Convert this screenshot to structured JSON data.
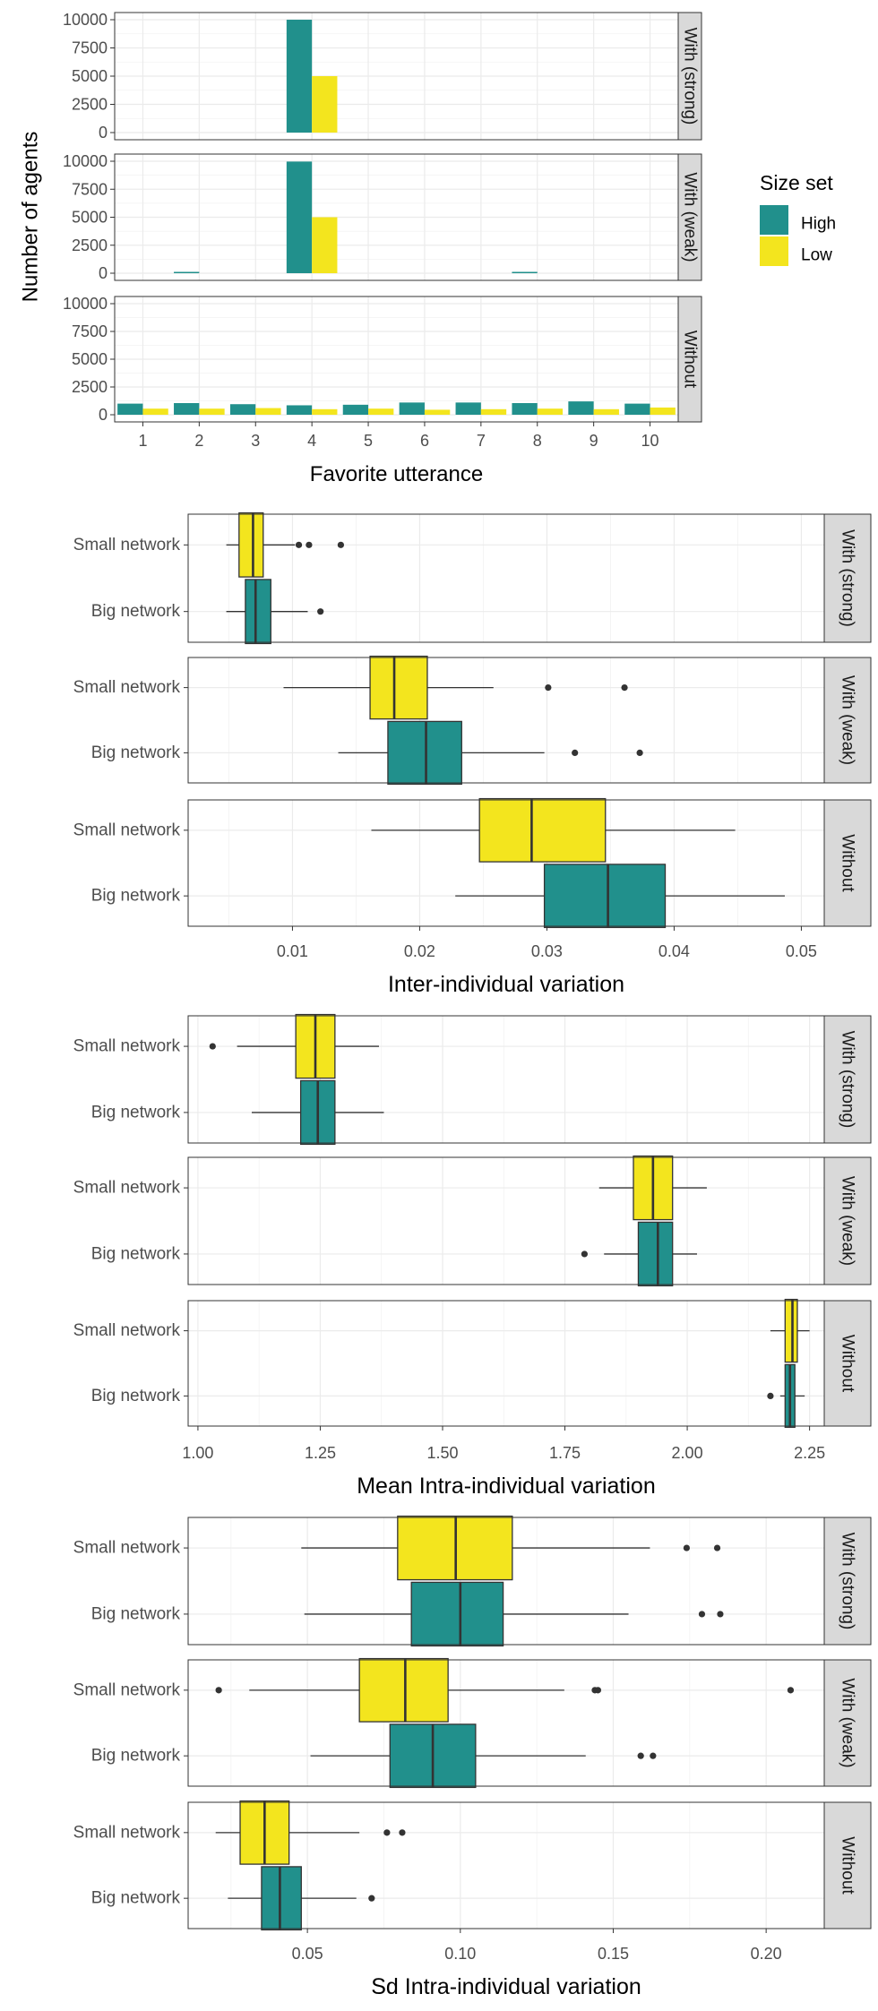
{
  "colors": {
    "high": "#21908C",
    "low": "#F3E51E",
    "strip_bg": "#D9D9D9",
    "grid": "#EBEBEB",
    "frame": "#333333"
  },
  "legend": {
    "title": "Size set",
    "items": [
      {
        "key": "high",
        "label": "High"
      },
      {
        "key": "low",
        "label": "Low"
      }
    ]
  },
  "chart_data": [
    {
      "type": "bar",
      "xlabel": "Favorite utterance",
      "ylabel": "Number of agents",
      "categories": [
        "1",
        "2",
        "3",
        "4",
        "5",
        "6",
        "7",
        "8",
        "9",
        "10"
      ],
      "ylim": [
        0,
        10000
      ],
      "yticks": [
        "10000",
        "7500",
        "5000",
        "2500",
        "0"
      ],
      "panels": [
        {
          "strip": "With (strong)",
          "series": [
            {
              "name": "High",
              "values": [
                0,
                0,
                0,
                10000,
                0,
                0,
                0,
                0,
                0,
                0
              ]
            },
            {
              "name": "Low",
              "values": [
                0,
                0,
                0,
                5000,
                0,
                0,
                0,
                0,
                0,
                0
              ]
            }
          ]
        },
        {
          "strip": "With (weak)",
          "series": [
            {
              "name": "High",
              "values": [
                0,
                30,
                0,
                9970,
                0,
                0,
                0,
                30,
                0,
                0
              ]
            },
            {
              "name": "Low",
              "values": [
                0,
                0,
                0,
                5000,
                0,
                0,
                0,
                0,
                0,
                0
              ]
            }
          ]
        },
        {
          "strip": "Without",
          "series": [
            {
              "name": "High",
              "values": [
                1000,
                1050,
                950,
                850,
                900,
                1100,
                1100,
                1050,
                1200,
                1000
              ]
            },
            {
              "name": "Low",
              "values": [
                550,
                550,
                600,
                500,
                550,
                450,
                500,
                550,
                500,
                650
              ]
            }
          ]
        }
      ]
    },
    {
      "type": "boxplot",
      "xlabel": "Inter-individual variation",
      "categories": [
        "Small network",
        "Big network"
      ],
      "xlim": [
        0.0018,
        0.0518
      ],
      "xticks": [
        {
          "value": 0.01,
          "label": "0.01"
        },
        {
          "value": 0.02,
          "label": "0.02"
        },
        {
          "value": 0.03,
          "label": "0.03"
        },
        {
          "value": 0.04,
          "label": "0.04"
        },
        {
          "value": 0.05,
          "label": "0.05"
        }
      ],
      "panels": [
        {
          "strip": "With (strong)",
          "boxes": [
            {
              "group": "Small network",
              "size": "Low",
              "whisker_low": 0.0048,
              "q1": 0.0058,
              "median": 0.0069,
              "q3": 0.0077,
              "whisker_high": 0.0102,
              "outliers": [
                0.0105,
                0.0113,
                0.0138
              ]
            },
            {
              "group": "Big network",
              "size": "High",
              "whisker_low": 0.0048,
              "q1": 0.0063,
              "median": 0.0071,
              "q3": 0.0083,
              "whisker_high": 0.0112,
              "outliers": [
                0.0122
              ]
            }
          ]
        },
        {
          "strip": "With (weak)",
          "boxes": [
            {
              "group": "Small network",
              "size": "Low",
              "whisker_low": 0.0093,
              "q1": 0.0161,
              "median": 0.018,
              "q3": 0.0206,
              "whisker_high": 0.0258,
              "outliers": [
                0.0301,
                0.0361
              ]
            },
            {
              "group": "Big network",
              "size": "High",
              "whisker_low": 0.0136,
              "q1": 0.0175,
              "median": 0.0205,
              "q3": 0.0233,
              "whisker_high": 0.0298,
              "outliers": [
                0.0322,
                0.0373
              ]
            }
          ]
        },
        {
          "strip": "Without",
          "boxes": [
            {
              "group": "Small network",
              "size": "Low",
              "whisker_low": 0.0162,
              "q1": 0.0247,
              "median": 0.0288,
              "q3": 0.0346,
              "whisker_high": 0.0448,
              "outliers": []
            },
            {
              "group": "Big network",
              "size": "High",
              "whisker_low": 0.0228,
              "q1": 0.0298,
              "median": 0.0348,
              "q3": 0.0393,
              "whisker_high": 0.0487,
              "outliers": []
            }
          ]
        }
      ]
    },
    {
      "type": "boxplot",
      "xlabel": "Mean Intra-individual variation",
      "categories": [
        "Small network",
        "Big network"
      ],
      "xlim": [
        0.98,
        2.28
      ],
      "xticks": [
        {
          "value": 1.0,
          "label": "1.00"
        },
        {
          "value": 1.25,
          "label": "1.25"
        },
        {
          "value": 1.5,
          "label": "1.50"
        },
        {
          "value": 1.75,
          "label": "1.75"
        },
        {
          "value": 2.0,
          "label": "2.00"
        },
        {
          "value": 2.25,
          "label": "2.25"
        }
      ],
      "panels": [
        {
          "strip": "With (strong)",
          "boxes": [
            {
              "group": "Small network",
              "size": "Low",
              "whisker_low": 1.08,
              "q1": 1.2,
              "median": 1.24,
              "q3": 1.28,
              "whisker_high": 1.37,
              "outliers": [
                1.03
              ]
            },
            {
              "group": "Big network",
              "size": "High",
              "whisker_low": 1.11,
              "q1": 1.21,
              "median": 1.245,
              "q3": 1.28,
              "whisker_high": 1.38,
              "outliers": []
            }
          ]
        },
        {
          "strip": "With (weak)",
          "boxes": [
            {
              "group": "Small network",
              "size": "Low",
              "whisker_low": 1.82,
              "q1": 1.89,
              "median": 1.93,
              "q3": 1.97,
              "whisker_high": 2.04,
              "outliers": []
            },
            {
              "group": "Big network",
              "size": "High",
              "whisker_low": 1.83,
              "q1": 1.9,
              "median": 1.94,
              "q3": 1.97,
              "whisker_high": 2.02,
              "outliers": [
                1.79
              ]
            }
          ]
        },
        {
          "strip": "Without",
          "boxes": [
            {
              "group": "Small network",
              "size": "Low",
              "whisker_low": 2.17,
              "q1": 2.2,
              "median": 2.215,
              "q3": 2.225,
              "whisker_high": 2.25,
              "outliers": []
            },
            {
              "group": "Big network",
              "size": "High",
              "whisker_low": 2.19,
              "q1": 2.2,
              "median": 2.21,
              "q3": 2.22,
              "whisker_high": 2.24,
              "outliers": [
                2.17
              ]
            }
          ]
        }
      ]
    },
    {
      "type": "boxplot",
      "xlabel": "Sd Intra-individual variation",
      "categories": [
        "Small network",
        "Big network"
      ],
      "xlim": [
        0.011,
        0.219
      ],
      "xticks": [
        {
          "value": 0.05,
          "label": "0.05"
        },
        {
          "value": 0.1,
          "label": "0.10"
        },
        {
          "value": 0.15,
          "label": "0.15"
        },
        {
          "value": 0.2,
          "label": "0.20"
        }
      ],
      "panels": [
        {
          "strip": "With (strong)",
          "boxes": [
            {
              "group": "Small network",
              "size": "Low",
              "whisker_low": 0.048,
              "q1": 0.0795,
              "median": 0.0985,
              "q3": 0.117,
              "whisker_high": 0.162,
              "outliers": [
                0.174,
                0.184
              ]
            },
            {
              "group": "Big network",
              "size": "High",
              "whisker_low": 0.049,
              "q1": 0.084,
              "median": 0.1,
              "q3": 0.114,
              "whisker_high": 0.155,
              "outliers": [
                0.179,
                0.185
              ]
            }
          ]
        },
        {
          "strip": "With (weak)",
          "boxes": [
            {
              "group": "Small network",
              "size": "Low",
              "whisker_low": 0.031,
              "q1": 0.067,
              "median": 0.082,
              "q3": 0.096,
              "whisker_high": 0.134,
              "outliers": [
                0.021,
                0.144,
                0.145,
                0.208
              ]
            },
            {
              "group": "Big network",
              "size": "High",
              "whisker_low": 0.051,
              "q1": 0.077,
              "median": 0.091,
              "q3": 0.105,
              "whisker_high": 0.141,
              "outliers": [
                0.159,
                0.163
              ]
            }
          ]
        },
        {
          "strip": "Without",
          "boxes": [
            {
              "group": "Small network",
              "size": "Low",
              "whisker_low": 0.02,
              "q1": 0.028,
              "median": 0.036,
              "q3": 0.044,
              "whisker_high": 0.067,
              "outliers": [
                0.076,
                0.081
              ]
            },
            {
              "group": "Big network",
              "size": "High",
              "whisker_low": 0.024,
              "q1": 0.035,
              "median": 0.041,
              "q3": 0.048,
              "whisker_high": 0.066,
              "outliers": [
                0.071
              ]
            }
          ]
        }
      ]
    }
  ]
}
